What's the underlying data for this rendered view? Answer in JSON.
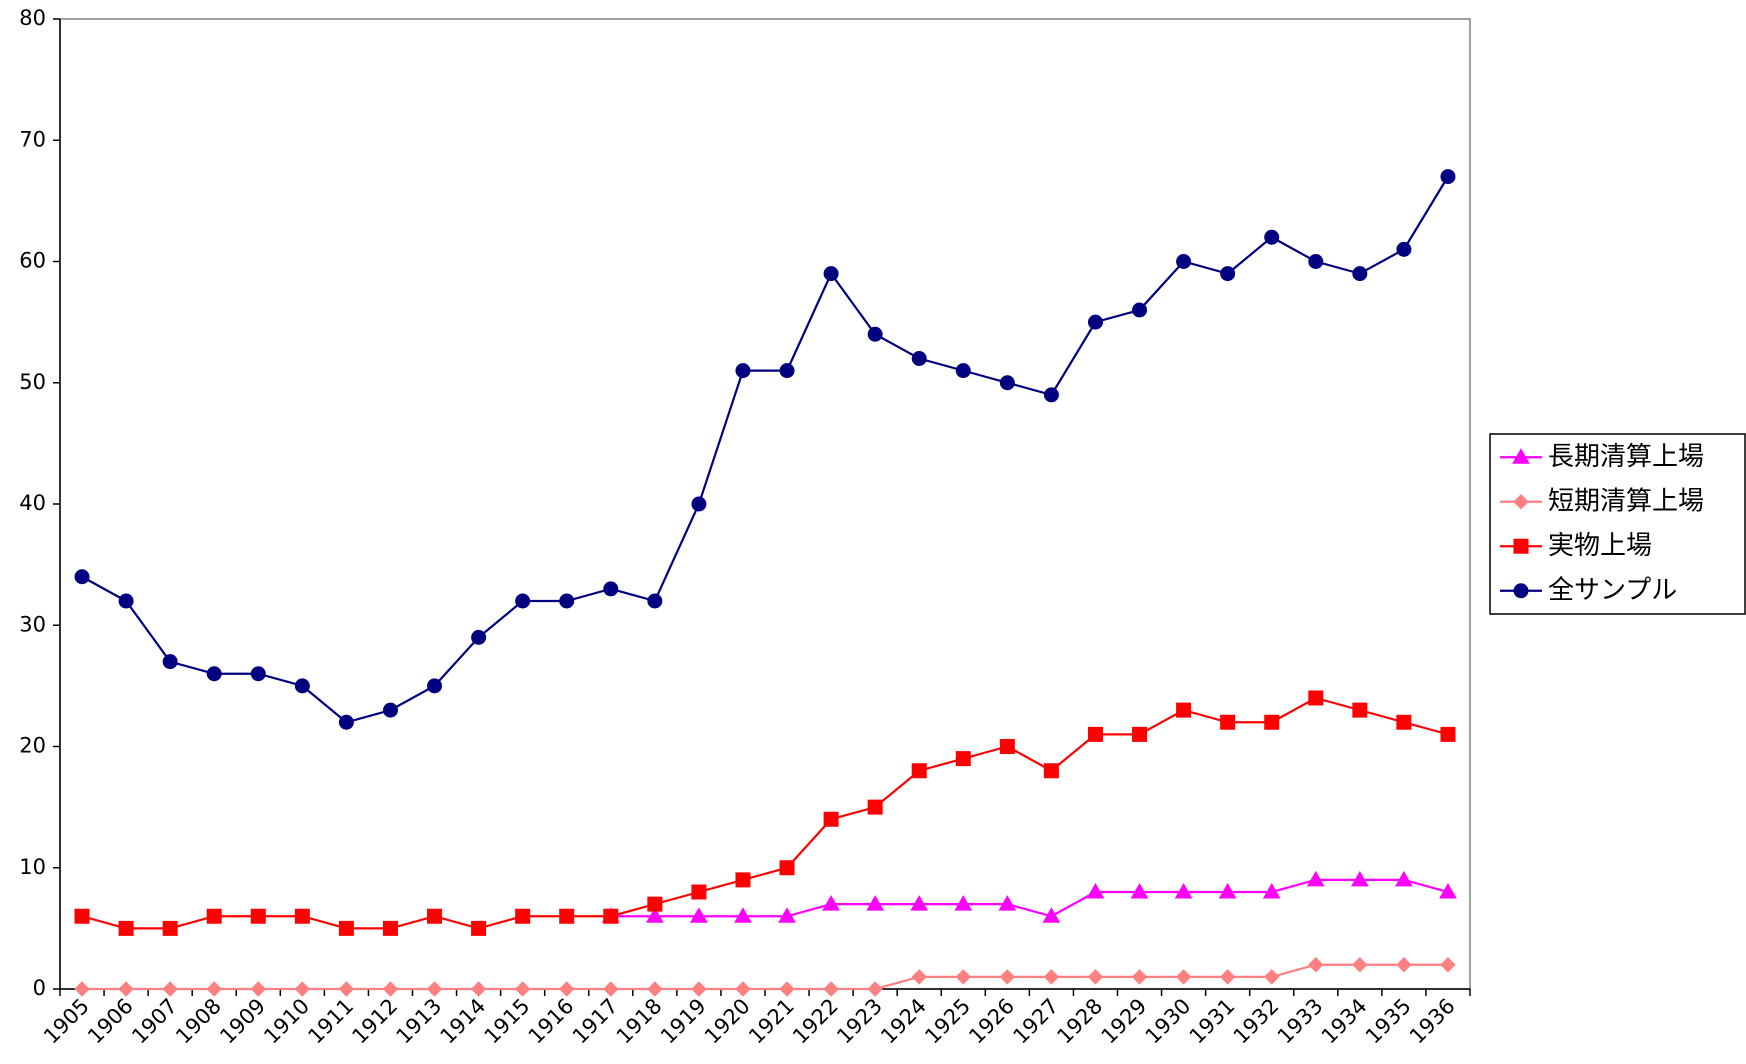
{
  "chart_data": {
    "type": "line",
    "categories": [
      "1905",
      "1906",
      "1907",
      "1908",
      "1909",
      "1910",
      "1911",
      "1912",
      "1913",
      "1914",
      "1915",
      "1916",
      "1917",
      "1918",
      "1919",
      "1920",
      "1921",
      "1922",
      "1923",
      "1924",
      "1925",
      "1926",
      "1927",
      "1928",
      "1929",
      "1930",
      "1931",
      "1932",
      "1933",
      "1934",
      "1935",
      "1936"
    ],
    "series": [
      {
        "name": "長期清算上場",
        "color": "#ff00ff",
        "marker": "triangle",
        "values": [
          null,
          null,
          null,
          null,
          null,
          null,
          null,
          null,
          null,
          null,
          null,
          null,
          6,
          6,
          6,
          6,
          6,
          7,
          7,
          7,
          7,
          7,
          6,
          8,
          8,
          8,
          8,
          8,
          9,
          9,
          9,
          8
        ]
      },
      {
        "name": "短期清算上場",
        "color": "#ff8080",
        "marker": "diamond",
        "values": [
          0,
          0,
          0,
          0,
          0,
          0,
          0,
          0,
          0,
          0,
          0,
          0,
          0,
          0,
          0,
          0,
          0,
          0,
          0,
          1,
          1,
          1,
          1,
          1,
          1,
          1,
          1,
          1,
          2,
          2,
          2,
          2
        ]
      },
      {
        "name": "実物上場",
        "color": "#ff0000",
        "marker": "square",
        "values": [
          6,
          5,
          5,
          6,
          6,
          6,
          5,
          5,
          6,
          5,
          6,
          6,
          6,
          7,
          8,
          9,
          10,
          14,
          15,
          18,
          19,
          20,
          18,
          21,
          21,
          23,
          22,
          22,
          24,
          23,
          22,
          21
        ]
      },
      {
        "name": "全サンプル",
        "color": "#000080",
        "marker": "circle",
        "values": [
          34,
          32,
          27,
          26,
          26,
          25,
          22,
          23,
          25,
          29,
          32,
          32,
          33,
          32,
          40,
          51,
          51,
          59,
          54,
          52,
          51,
          50,
          49,
          55,
          56,
          60,
          59,
          62,
          60,
          59,
          61,
          67
        ]
      }
    ],
    "ylim": [
      0,
      80
    ],
    "yticks": [
      0,
      10,
      20,
      30,
      40,
      50,
      60,
      70,
      80
    ],
    "grid": false,
    "legend": "right"
  }
}
